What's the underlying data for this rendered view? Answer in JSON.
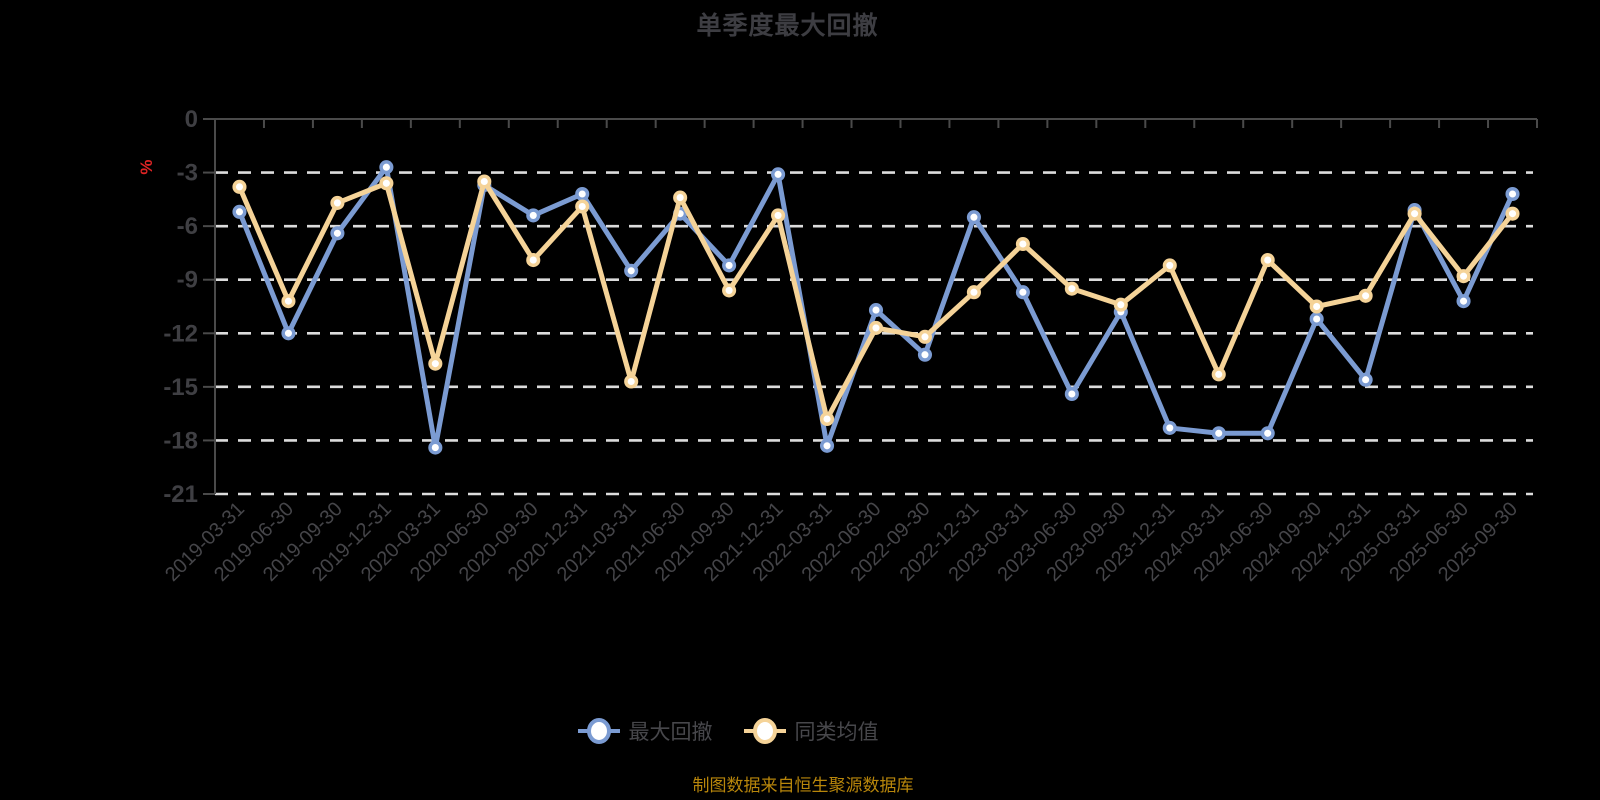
{
  "title": "单季度最大回撤",
  "footer": "制图数据来自恒生聚源数据库",
  "chart_data": {
    "type": "line",
    "title": "单季度最大回撤",
    "xlabel": "",
    "ylabel": "%",
    "ylabel_color": "#e02424",
    "ylim": [
      -21,
      0
    ],
    "y_ticks": [
      0,
      -3,
      -6,
      -9,
      -12,
      -15,
      -18,
      -21
    ],
    "grid": "dashed-horizontal",
    "legend_position": "bottom",
    "background": "#000000",
    "categories": [
      "2019-03-31",
      "2019-06-30",
      "2019-09-30",
      "2019-12-31",
      "2020-03-31",
      "2020-06-30",
      "2020-09-30",
      "2020-12-31",
      "2021-03-31",
      "2021-06-30",
      "2021-09-30",
      "2021-12-31",
      "2022-03-31",
      "2022-06-30",
      "2022-09-30",
      "2022-12-31",
      "2023-03-31",
      "2023-06-30",
      "2023-09-30",
      "2023-12-31",
      "2024-03-31",
      "2024-06-30",
      "2024-09-30",
      "2024-12-31",
      "2025-03-31",
      "2025-06-30",
      "2025-09-30"
    ],
    "series": [
      {
        "name": "最大回撤",
        "color": "#7b9bd2",
        "marker_fill": "#ffffff",
        "values": [
          -5.2,
          -12.0,
          -6.4,
          -2.7,
          -18.4,
          -3.7,
          -5.4,
          -4.2,
          -8.5,
          -5.3,
          -8.2,
          -3.1,
          -18.3,
          -10.7,
          -13.2,
          -5.5,
          -9.7,
          -15.4,
          -10.8,
          -17.3,
          -17.6,
          -17.6,
          -11.2,
          -14.6,
          -5.1,
          -10.2,
          -4.2
        ]
      },
      {
        "name": "同类均值",
        "color": "#f5d398",
        "marker_fill": "#ffffff",
        "values": [
          -3.8,
          -10.2,
          -4.7,
          -3.6,
          -13.7,
          -3.5,
          -7.9,
          -4.9,
          -14.7,
          -4.4,
          -9.6,
          -5.4,
          -16.8,
          -11.7,
          -12.2,
          -9.7,
          -7.0,
          -9.5,
          -10.4,
          -8.2,
          -14.3,
          -7.9,
          -10.5,
          -9.9,
          -5.3,
          -8.8,
          -5.3
        ]
      }
    ],
    "axis_color": "#4a4a4a",
    "gridline_color": "#dcdcdc",
    "tick_label_color": "#3f3f43"
  }
}
